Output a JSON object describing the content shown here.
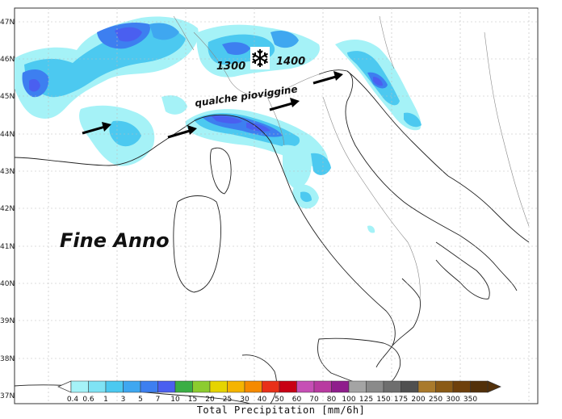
{
  "latitude_labels": [
    "47N",
    "46N",
    "45N",
    "44N",
    "43N",
    "42N",
    "41N",
    "40N",
    "39N",
    "38N",
    "37N"
  ],
  "annotations": {
    "title": "Fine Anno",
    "snow_level_left": "1300",
    "snow_level_right": "1400",
    "drizzle": "qualche pioviggine"
  },
  "icons": {
    "snowflake": "snowflake-icon",
    "arrows": "wind-arrow-icon"
  },
  "colorbar": {
    "title": "Total Precipitation [mm/6h]",
    "levels": [
      "0.4",
      "0.6",
      "1",
      "3",
      "5",
      "7",
      "10",
      "15",
      "20",
      "25",
      "30",
      "40",
      "50",
      "60",
      "70",
      "80",
      "100",
      "125",
      "150",
      "175",
      "200",
      "250",
      "300",
      "350"
    ],
    "colors": [
      "#a5f2f7",
      "#7fe3f4",
      "#4cc9f0",
      "#3fa7f0",
      "#3d7ff0",
      "#4a5ff0",
      "#3aae45",
      "#8ccc2f",
      "#e6d400",
      "#f5b400",
      "#f58a00",
      "#e83018",
      "#c80014",
      "#c64fb5",
      "#b83aa0",
      "#8f1e8c",
      "#a4a4a4",
      "#8a8a8a",
      "#6e6e6e",
      "#505050",
      "#a97a2c",
      "#8a5a16",
      "#6e400c",
      "#52300a"
    ]
  }
}
